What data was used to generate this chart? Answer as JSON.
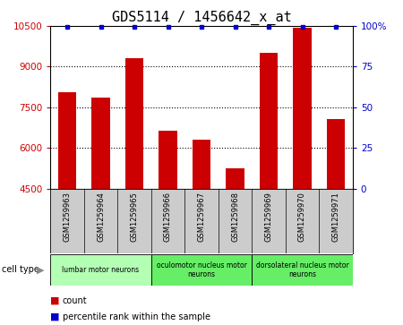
{
  "title": "GDS5114 / 1456642_x_at",
  "samples": [
    "GSM1259963",
    "GSM1259964",
    "GSM1259965",
    "GSM1259966",
    "GSM1259967",
    "GSM1259968",
    "GSM1259969",
    "GSM1259970",
    "GSM1259971"
  ],
  "counts": [
    8050,
    7850,
    9300,
    6650,
    6300,
    5250,
    9500,
    10450,
    7050
  ],
  "percentiles": [
    100,
    100,
    100,
    100,
    100,
    100,
    100,
    100,
    100
  ],
  "ylim": [
    4500,
    10500
  ],
  "yticks": [
    4500,
    6000,
    7500,
    9000,
    10500
  ],
  "right_yticks": [
    0,
    25,
    50,
    75,
    100
  ],
  "cell_types": [
    {
      "label": "lumbar motor neurons",
      "start": 0,
      "end": 3,
      "color": "#b3ffb3"
    },
    {
      "label": "oculomotor nucleus motor\nneurons",
      "start": 3,
      "end": 6,
      "color": "#66ee66"
    },
    {
      "label": "dorsolateral nucleus motor\nneurons",
      "start": 6,
      "end": 9,
      "color": "#66ee66"
    }
  ],
  "bar_color": "#cc0000",
  "percentile_color": "#0000cc",
  "grid_color": "#000000",
  "bg_color": "#ffffff",
  "sample_label_bg": "#cccccc",
  "left_label_color": "#cc0000",
  "right_label_color": "#0000cc",
  "title_fontsize": 11,
  "tick_fontsize": 7.5,
  "bar_width": 0.55
}
